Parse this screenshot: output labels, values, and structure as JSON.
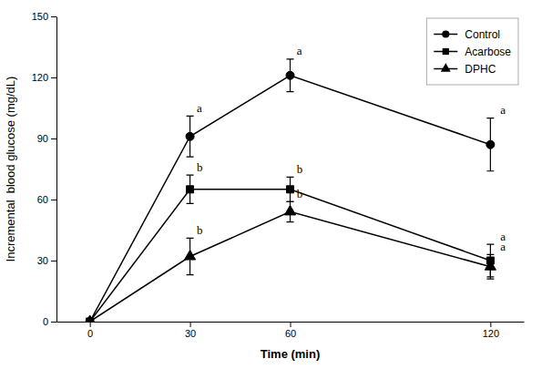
{
  "chart_data": {
    "type": "line",
    "x": [
      0,
      30,
      60,
      120
    ],
    "xlabel": "Time (min)",
    "ylabel": "Incremental  blood glucose (mg/dL)",
    "xlim": [
      -10,
      130
    ],
    "xticks": [
      0,
      30,
      60,
      120
    ],
    "ylim": [
      0,
      150
    ],
    "yticks": [
      0,
      30,
      60,
      90,
      120,
      150
    ],
    "grid": false,
    "legend": "upper right",
    "series": [
      {
        "name": "Control",
        "color": "#000000",
        "marker": "circle",
        "values": [
          0,
          91,
          121,
          87
        ],
        "errors": [
          0,
          10,
          8,
          13
        ]
      },
      {
        "name": "Acarbose",
        "color": "#000000",
        "marker": "square",
        "values": [
          0,
          65,
          65,
          30
        ],
        "errors": [
          0,
          7,
          6,
          8
        ]
      },
      {
        "name": "DPHC",
        "color": "#000000",
        "marker": "triangle",
        "values": [
          0,
          32,
          54,
          27
        ],
        "errors": [
          0,
          9,
          5,
          6
        ]
      }
    ],
    "annotations": [
      {
        "text": "a",
        "x": 32,
        "y": 103
      },
      {
        "text": "a",
        "x": 62,
        "y": 131
      },
      {
        "text": "a",
        "x": 123,
        "y": 102
      },
      {
        "text": "b",
        "x": 32,
        "y": 74
      },
      {
        "text": "b",
        "x": 62,
        "y": 73
      },
      {
        "text": "a",
        "x": 123,
        "y": 40
      },
      {
        "text": "b",
        "x": 32,
        "y": 43
      },
      {
        "text": "b",
        "x": 62,
        "y": 61
      },
      {
        "text": "a",
        "x": 123,
        "y": 35
      }
    ]
  }
}
